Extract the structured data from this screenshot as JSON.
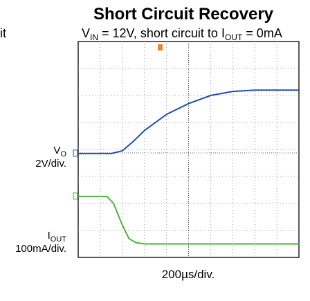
{
  "chart_data": {
    "type": "line",
    "title": "Short Circuit Recovery",
    "subtitle": [
      "V",
      "IN",
      " = 12V, short circuit to I",
      "OUT",
      " = 0mA"
    ],
    "side_text": "it",
    "xlabel": "200µs/div.",
    "xlim": [
      0,
      10
    ],
    "ylim": [
      0,
      8
    ],
    "grid": true,
    "series": [
      {
        "name": "VO",
        "scale": "2V/div.",
        "color": "#1f4fa8",
        "x": [
          0,
          1.5,
          2,
          2.5,
          3,
          4,
          5,
          6,
          7,
          8,
          9,
          10
        ],
        "values": [
          3.85,
          3.85,
          3.95,
          4.3,
          4.7,
          5.3,
          5.7,
          6.0,
          6.15,
          6.2,
          6.2,
          6.2
        ]
      },
      {
        "name": "IOUT",
        "scale": "100mA/div.",
        "color": "#4cb23a",
        "x": [
          0,
          1.3,
          1.6,
          2,
          2.3,
          2.6,
          3,
          10
        ],
        "values": [
          2.26,
          2.26,
          2.0,
          1.2,
          0.7,
          0.55,
          0.5,
          0.5
        ]
      }
    ]
  }
}
